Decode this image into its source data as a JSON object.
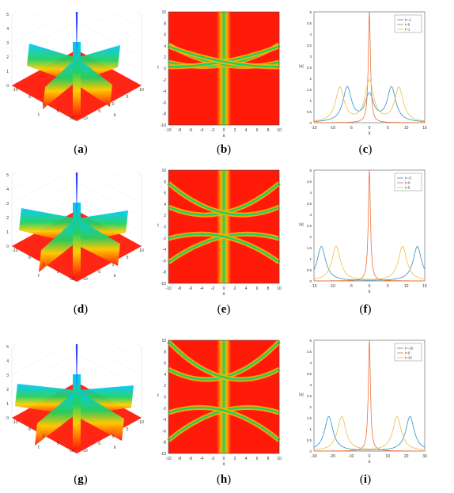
{
  "captions": {
    "a": "a",
    "b": "b",
    "c": "c",
    "d": "d",
    "e": "e",
    "f": "f",
    "g": "g",
    "h": "h",
    "i": "i"
  },
  "row_a": {
    "surface": {
      "zlabel": "|u|",
      "xlabel": "x",
      "ylabel": "t",
      "zticks": [
        "0",
        "1",
        "2",
        "3",
        "4",
        "5"
      ],
      "xticks": [
        "-10",
        "-5",
        "0",
        "5",
        "10"
      ],
      "tticks": [
        "-10",
        "-5",
        "0",
        "5",
        "10"
      ]
    },
    "density": {
      "xlabel": "x",
      "ylabel": "t",
      "xticks": [
        "-10",
        "-8",
        "-6",
        "-4",
        "-2",
        "0",
        "2",
        "4",
        "6",
        "8",
        "10"
      ],
      "yticks": [
        "10",
        "8",
        "6",
        "4",
        "2",
        "0",
        "-2",
        "-4",
        "-6",
        "-8",
        "-10"
      ]
    },
    "chart_data": {
      "type": "line",
      "xlabel": "x",
      "ylabel": "|u|",
      "xlim": [
        -15,
        15
      ],
      "ylim": [
        0,
        5
      ],
      "xticks": [
        "-15",
        "-10",
        "-5",
        "0",
        "5",
        "10",
        "15"
      ],
      "yticks": [
        "0",
        "0.5",
        "1",
        "1.5",
        "2",
        "2.5",
        "3",
        "3.5",
        "4",
        "4.5",
        "5"
      ],
      "legend": "top-right",
      "series": [
        {
          "name": "t=-1",
          "peaks": [
            [
              -6,
              1.55
            ],
            [
              6,
              1.55
            ],
            [
              0,
              1.2
            ]
          ]
        },
        {
          "name": "t=0",
          "peaks": [
            [
              0,
              5.0
            ]
          ]
        },
        {
          "name": "t=1",
          "peaks": [
            [
              -8,
              1.55
            ],
            [
              8,
              1.55
            ],
            [
              0,
              1.85
            ]
          ]
        }
      ]
    }
  },
  "row_d": {
    "surface": {
      "zlabel": "|u|",
      "xlabel": "x",
      "ylabel": "t",
      "zticks": [
        "0",
        "1",
        "2",
        "3",
        "4",
        "5"
      ],
      "xticks": [
        "-10",
        "-5",
        "0",
        "5",
        "10"
      ],
      "tticks": [
        "-10",
        "-5",
        "0",
        "5",
        "10"
      ]
    },
    "density": {
      "xlabel": "x",
      "ylabel": "t",
      "xticks": [
        "-10",
        "-8",
        "-6",
        "-4",
        "-2",
        "0",
        "2",
        "4",
        "6",
        "8",
        "10"
      ],
      "yticks": [
        "10",
        "8",
        "6",
        "4",
        "2",
        "0",
        "-2",
        "-4",
        "-6",
        "-8",
        "-10"
      ]
    },
    "chart_data": {
      "type": "line",
      "xlabel": "x",
      "ylabel": "|u|",
      "xlim": [
        -15,
        15
      ],
      "ylim": [
        0,
        5
      ],
      "xticks": [
        "-15",
        "-10",
        "-5",
        "0",
        "5",
        "10",
        "15"
      ],
      "yticks": [
        "0",
        "0.5",
        "1",
        "1.5",
        "2",
        "2.5",
        "3",
        "3.5",
        "4",
        "4.5",
        "5"
      ],
      "legend": "top-right",
      "series": [
        {
          "name": "t=-5",
          "peaks": [
            [
              -13,
              1.55
            ],
            [
              13,
              1.55
            ]
          ]
        },
        {
          "name": "t=0",
          "peaks": [
            [
              0,
              5.0
            ]
          ]
        },
        {
          "name": "t=5",
          "peaks": [
            [
              -9,
              1.55
            ],
            [
              9,
              1.55
            ]
          ]
        }
      ]
    }
  },
  "row_g": {
    "surface": {
      "zlabel": "|u|",
      "xlabel": "x",
      "ylabel": "t",
      "zticks": [
        "0",
        "1",
        "2",
        "3",
        "4",
        "5"
      ],
      "xticks": [
        "-10",
        "-5",
        "0",
        "5",
        "10"
      ],
      "tticks": [
        "-10",
        "-5",
        "0",
        "5",
        "10"
      ]
    },
    "density": {
      "xlabel": "x",
      "ylabel": "t",
      "xticks": [
        "-10",
        "-8",
        "-6",
        "-4",
        "-2",
        "0",
        "2",
        "4",
        "6",
        "8",
        "10"
      ],
      "yticks": [
        "10",
        "8",
        "6",
        "4",
        "2",
        "0",
        "-2",
        "-4",
        "-6",
        "-8",
        "-10"
      ]
    },
    "chart_data": {
      "type": "line",
      "xlabel": "x",
      "ylabel": "|u|",
      "xlim": [
        -30,
        30
      ],
      "ylim": [
        0,
        5
      ],
      "xticks": [
        "-30",
        "-20",
        "-10",
        "0",
        "10",
        "20",
        "30"
      ],
      "yticks": [
        "0",
        "0.5",
        "1",
        "1.5",
        "2",
        "2.5",
        "3",
        "3.5",
        "4",
        "4.5",
        "5"
      ],
      "legend": "top-right",
      "series": [
        {
          "name": "t=-10",
          "peaks": [
            [
              -22,
              1.55
            ],
            [
              22,
              1.55
            ]
          ]
        },
        {
          "name": "t=0",
          "peaks": [
            [
              0,
              5.0
            ]
          ]
        },
        {
          "name": "t=10",
          "peaks": [
            [
              -15,
              1.55
            ],
            [
              15,
              1.55
            ]
          ]
        }
      ]
    }
  },
  "colors": {
    "s1": "#2e8fc8",
    "s2": "#e8733a",
    "s3": "#e8c04a",
    "red": "#ff1a0a",
    "green": "#20d060"
  }
}
